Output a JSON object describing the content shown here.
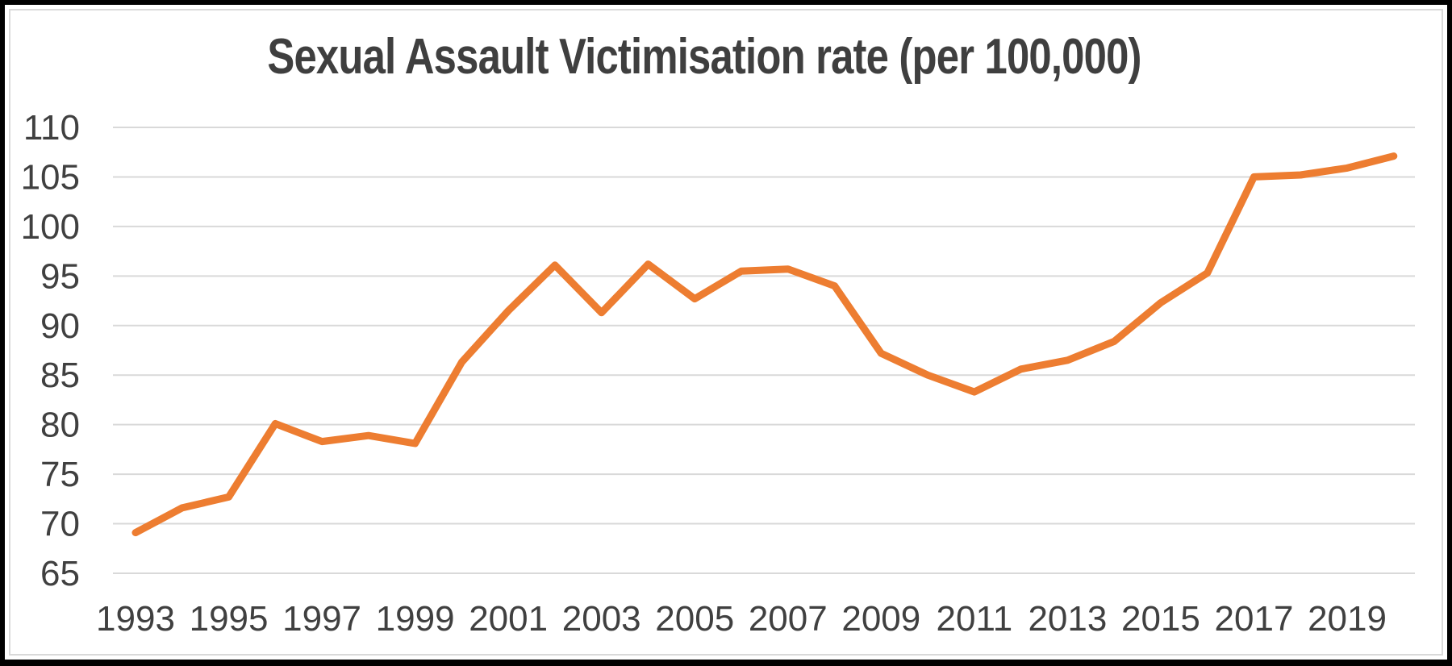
{
  "chart_data": {
    "type": "line",
    "title": "Sexual Assault Victimisation rate (per 100,000)",
    "x": [
      1993,
      1994,
      1995,
      1996,
      1997,
      1998,
      1999,
      2000,
      2001,
      2002,
      2003,
      2004,
      2005,
      2006,
      2007,
      2008,
      2009,
      2010,
      2011,
      2012,
      2013,
      2014,
      2015,
      2016,
      2017,
      2018,
      2019,
      2020
    ],
    "series": [
      {
        "name": "Sexual assault victimisation rate per 100,000",
        "values": [
          69.1,
          71.6,
          72.7,
          80.1,
          78.3,
          78.9,
          78.1,
          86.3,
          91.5,
          96.1,
          91.3,
          96.2,
          92.7,
          95.5,
          95.7,
          94.0,
          87.2,
          85.0,
          83.3,
          85.6,
          86.5,
          88.4,
          92.3,
          95.3,
          105.0,
          105.2,
          105.9,
          107.1
        ]
      }
    ],
    "xlabel": "",
    "ylabel": "",
    "ylim": [
      65,
      110
    ],
    "yticks": [
      65,
      70,
      75,
      80,
      85,
      90,
      95,
      100,
      105,
      110
    ],
    "xtick_labels": [
      "1993",
      "1995",
      "1997",
      "1999",
      "2001",
      "2003",
      "2005",
      "2007",
      "2009",
      "2011",
      "2013",
      "2015",
      "2017",
      "2019"
    ],
    "grid": "horizontal",
    "legend_position": "none",
    "colors": {
      "line": "#ED7D31",
      "gridline": "#D9D9D9",
      "axis_text": "#404040",
      "title_text": "#3F3F3F",
      "chart_background": "#FFFFFF",
      "outer_border": "#000000",
      "chart_border": "#D9D9D9"
    }
  }
}
